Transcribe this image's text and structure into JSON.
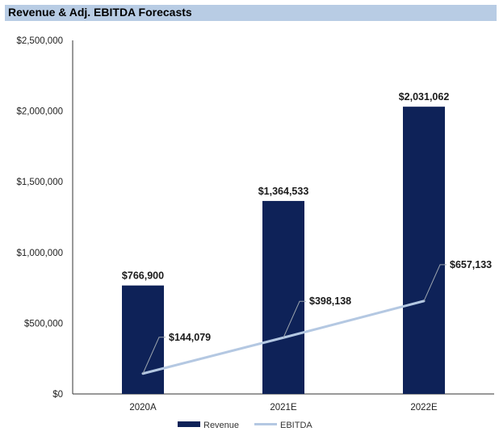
{
  "title": "Revenue & Adj. EBITDA Forecasts",
  "colors": {
    "title_bg": "#b8cce4",
    "revenue": "#0e2258",
    "ebitda": "#b4c8e2",
    "axis": "#333333",
    "leader": "#9aa3ad"
  },
  "chart_data": {
    "type": "bar",
    "categories": [
      "2020A",
      "2021E",
      "2022E"
    ],
    "series": [
      {
        "name": "Revenue",
        "kind": "bar",
        "values": [
          766900,
          1364533,
          2031062
        ],
        "labels": [
          "$766,900",
          "$1,364,533",
          "$2,031,062"
        ]
      },
      {
        "name": "EBITDA",
        "kind": "line",
        "values": [
          144079,
          398138,
          657133
        ],
        "labels": [
          "$144,079",
          "$398,138",
          "$657,133"
        ]
      }
    ],
    "ylim": [
      0,
      2500000
    ],
    "y_ticks": [
      0,
      500000,
      1000000,
      1500000,
      2000000,
      2500000
    ],
    "y_tick_labels": [
      "$0",
      "$500,000",
      "$1,000,000",
      "$1,500,000",
      "$2,000,000",
      "$2,500,000"
    ],
    "xlabel": "",
    "ylabel": "",
    "grid": false,
    "legend": {
      "position": "bottom",
      "entries": [
        "Revenue",
        "EBITDA"
      ]
    }
  }
}
